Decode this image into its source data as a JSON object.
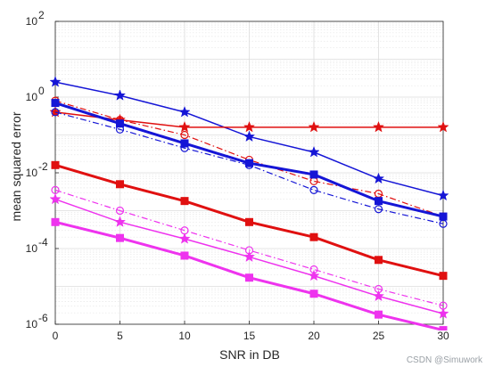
{
  "chart_data": {
    "type": "line",
    "xlabel": "SNR in DB",
    "ylabel": "mean squared error",
    "xlim": [
      0,
      30
    ],
    "ylim": [
      1e-06,
      100
    ],
    "yscale": "log",
    "grid": true,
    "minor_grid": true,
    "x": [
      0,
      5,
      10,
      15,
      20,
      25,
      30
    ],
    "x_ticks": [
      "0",
      "5",
      "10",
      "15",
      "20",
      "25",
      "30"
    ],
    "y_tick_base": "10",
    "y_tick_exponents": [
      "-6",
      "-4",
      "-2",
      "0",
      "2"
    ],
    "y_tick_values": [
      1e-06,
      0.0001,
      0.01,
      1,
      100
    ],
    "series": [
      {
        "values": [
          2.5,
          1.1,
          0.4,
          0.09,
          0.035,
          0.007,
          0.0025
        ],
        "color": "#1515d6",
        "marker": "star",
        "dash": "solid",
        "width": 1.5
      },
      {
        "values": [
          0.4,
          0.25,
          0.16,
          0.16,
          0.16,
          0.16,
          0.16
        ],
        "color": "#e01010",
        "marker": "star",
        "dash": "solid",
        "width": 1.5
      },
      {
        "values": [
          0.8,
          0.25,
          0.1,
          0.022,
          0.006,
          0.0028,
          0.0007
        ],
        "color": "#e01010",
        "marker": "circle",
        "dash": "dashdot",
        "width": 1.2
      },
      {
        "values": [
          0.7,
          0.2,
          0.06,
          0.018,
          0.009,
          0.0018,
          0.0007
        ],
        "color": "#1515d6",
        "marker": "square",
        "dash": "solid",
        "width": 3
      },
      {
        "values": [
          0.4,
          0.14,
          0.045,
          0.016,
          0.0035,
          0.0011,
          0.00045
        ],
        "color": "#1515d6",
        "marker": "circle",
        "dash": "dashdot",
        "width": 1.2
      },
      {
        "values": [
          0.016,
          0.005,
          0.0018,
          0.0005,
          0.0002,
          5e-05,
          1.9e-05
        ],
        "color": "#e01010",
        "marker": "square",
        "dash": "solid",
        "width": 3
      },
      {
        "values": [
          0.0035,
          0.001,
          0.0003,
          9e-05,
          2.8e-05,
          8.5e-06,
          3.1e-06
        ],
        "color": "#ee33ee",
        "marker": "circle",
        "dash": "dashdot",
        "width": 1.2
      },
      {
        "values": [
          0.002,
          0.0005,
          0.00018,
          6e-05,
          1.9e-05,
          5.5e-06,
          1.9e-06
        ],
        "color": "#ee33ee",
        "marker": "star",
        "dash": "solid",
        "width": 1.5
      },
      {
        "values": [
          0.0005,
          0.00019,
          6.5e-05,
          1.7e-05,
          6.4e-06,
          1.8e-06,
          7e-07
        ],
        "color": "#ee33ee",
        "marker": "square",
        "dash": "solid",
        "width": 3
      }
    ]
  },
  "watermark": "CSDN @Simuwork"
}
